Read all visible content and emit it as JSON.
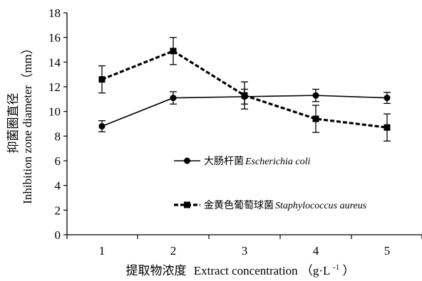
{
  "chart_data": {
    "type": "line",
    "title": "",
    "xlabel": {
      "cn": "提取物浓度",
      "en": "Extract concentration",
      "unit_base": "（g·L",
      "unit_sup": "-1",
      "unit_close": "）"
    },
    "ylabel": {
      "cn": "抑菌圈直径",
      "en": "Inhibition zone diameter（mm）"
    },
    "categories": [
      "1",
      "2",
      "3",
      "4",
      "5"
    ],
    "x": [
      1,
      2,
      3,
      4,
      5
    ],
    "ylim": [
      0,
      18
    ],
    "yticks": [
      "0",
      "2",
      "4",
      "6",
      "8",
      "10",
      "12",
      "14",
      "16",
      "18"
    ],
    "grid": false,
    "legend_position": "center-left",
    "series": [
      {
        "name_cn": "大肠杆菌",
        "name_latin": "Escherichia coli",
        "marker": "circle",
        "line": "solid",
        "color": "#000000",
        "values": [
          8.8,
          11.1,
          11.2,
          11.3,
          11.1
        ],
        "errors": [
          0.45,
          0.5,
          0.6,
          0.5,
          0.45
        ]
      },
      {
        "name_cn": "金黄色葡萄球菌",
        "name_latin": "Staphylococcus aureus",
        "marker": "square",
        "line": "dashed",
        "color": "#000000",
        "values": [
          12.6,
          14.9,
          11.3,
          9.4,
          8.7
        ],
        "errors": [
          1.1,
          1.1,
          1.1,
          1.1,
          1.1
        ]
      }
    ]
  }
}
